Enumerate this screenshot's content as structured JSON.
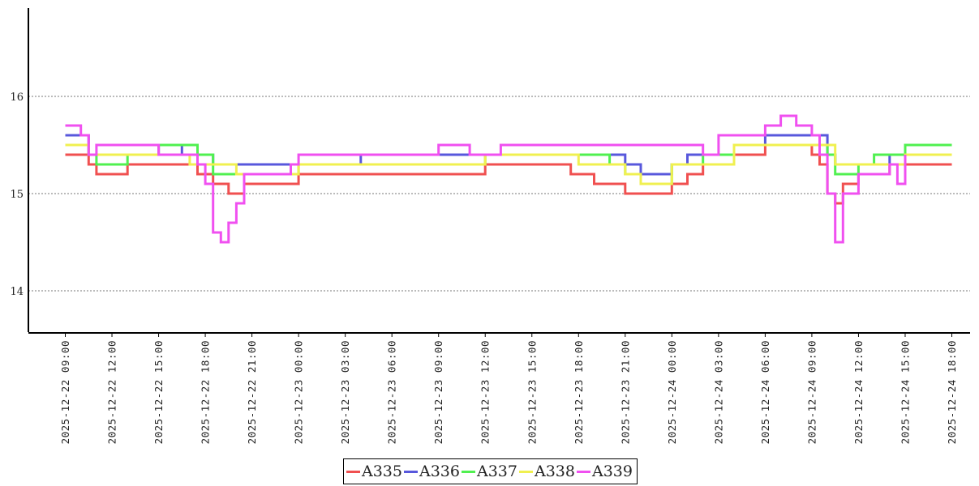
{
  "chart_data": {
    "type": "line",
    "title": "",
    "xlabel": "",
    "ylabel": "",
    "ylim": [
      13.6,
      16.9
    ],
    "y_ticks": [
      "14",
      "15",
      "16"
    ],
    "y_tick_values": [
      14,
      15,
      16
    ],
    "x_ticks": [
      "2025-12-22 09:00",
      "2025-12-22 12:00",
      "2025-12-22 15:00",
      "2025-12-22 18:00",
      "2025-12-22 21:00",
      "2025-12-23 00:00",
      "2025-12-23 03:00",
      "2025-12-23 06:00",
      "2025-12-23 09:00",
      "2025-12-23 12:00",
      "2025-12-23 15:00",
      "2025-12-23 18:00",
      "2025-12-23 21:00",
      "2025-12-24 00:00",
      "2025-12-24 03:00",
      "2025-12-24 06:00",
      "2025-12-24 09:00",
      "2025-12-24 12:00",
      "2025-12-24 15:00",
      "2025-12-24 18:00"
    ],
    "xlim": [
      "2025-12-22 08:05",
      "2025-12-24 19:15"
    ],
    "grid": "horizontal dotted",
    "legend": "bottom-center",
    "series": [
      {
        "name": "A335",
        "color": "#f05050",
        "points": [
          [
            "2025-12-22 09:00",
            15.4
          ],
          [
            "2025-12-22 10:30",
            15.3
          ],
          [
            "2025-12-22 11:00",
            15.2
          ],
          [
            "2025-12-22 13:00",
            15.3
          ],
          [
            "2025-12-22 17:30",
            15.2
          ],
          [
            "2025-12-22 18:30",
            15.1
          ],
          [
            "2025-12-22 19:30",
            15.0
          ],
          [
            "2025-12-22 20:30",
            15.1
          ],
          [
            "2025-12-22 23:30",
            15.1
          ],
          [
            "2025-12-23 00:00",
            15.2
          ],
          [
            "2025-12-23 07:00",
            15.2
          ],
          [
            "2025-12-23 08:00",
            15.2
          ],
          [
            "2025-12-23 12:00",
            15.3
          ],
          [
            "2025-12-23 16:30",
            15.3
          ],
          [
            "2025-12-23 17:30",
            15.2
          ],
          [
            "2025-12-23 19:00",
            15.1
          ],
          [
            "2025-12-23 21:00",
            15.0
          ],
          [
            "2025-12-24 00:00",
            15.1
          ],
          [
            "2025-12-24 01:00",
            15.2
          ],
          [
            "2025-12-24 02:00",
            15.3
          ],
          [
            "2025-12-24 04:00",
            15.4
          ],
          [
            "2025-12-24 06:00",
            15.5
          ],
          [
            "2025-12-24 08:00",
            15.5
          ],
          [
            "2025-12-24 09:00",
            15.4
          ],
          [
            "2025-12-24 09:30",
            15.3
          ],
          [
            "2025-12-24 10:00",
            15.0
          ],
          [
            "2025-12-24 10:30",
            14.9
          ],
          [
            "2025-12-24 11:00",
            15.1
          ],
          [
            "2025-12-24 12:00",
            15.2
          ],
          [
            "2025-12-24 14:00",
            15.3
          ],
          [
            "2025-12-24 18:00",
            15.3
          ]
        ]
      },
      {
        "name": "A336",
        "color": "#5858dc",
        "points": [
          [
            "2025-12-22 09:00",
            15.6
          ],
          [
            "2025-12-22 10:00",
            15.6
          ],
          [
            "2025-12-22 10:30",
            15.4
          ],
          [
            "2025-12-22 14:30",
            15.4
          ],
          [
            "2025-12-22 15:00",
            15.5
          ],
          [
            "2025-12-22 16:30",
            15.4
          ],
          [
            "2025-12-22 18:00",
            15.4
          ],
          [
            "2025-12-22 18:30",
            15.3
          ],
          [
            "2025-12-22 20:30",
            15.3
          ],
          [
            "2025-12-23 00:00",
            15.3
          ],
          [
            "2025-12-23 03:30",
            15.3
          ],
          [
            "2025-12-23 04:00",
            15.4
          ],
          [
            "2025-12-23 20:00",
            15.4
          ],
          [
            "2025-12-23 21:00",
            15.3
          ],
          [
            "2025-12-23 22:00",
            15.2
          ],
          [
            "2025-12-24 00:00",
            15.3
          ],
          [
            "2025-12-24 01:00",
            15.4
          ],
          [
            "2025-12-24 04:00",
            15.5
          ],
          [
            "2025-12-24 05:00",
            15.5
          ],
          [
            "2025-12-24 06:00",
            15.6
          ],
          [
            "2025-12-24 08:00",
            15.6
          ],
          [
            "2025-12-24 09:30",
            15.6
          ],
          [
            "2025-12-24 10:00",
            15.4
          ],
          [
            "2025-12-24 10:30",
            15.3
          ],
          [
            "2025-12-24 13:00",
            15.3
          ],
          [
            "2025-12-24 14:00",
            15.4
          ],
          [
            "2025-12-24 15:00",
            15.5
          ],
          [
            "2025-12-24 18:00",
            15.5
          ]
        ]
      },
      {
        "name": "A337",
        "color": "#50f050",
        "points": [
          [
            "2025-12-22 09:00",
            15.5
          ],
          [
            "2025-12-22 10:30",
            15.4
          ],
          [
            "2025-12-22 11:00",
            15.3
          ],
          [
            "2025-12-22 13:00",
            15.4
          ],
          [
            "2025-12-22 15:00",
            15.5
          ],
          [
            "2025-12-22 17:30",
            15.4
          ],
          [
            "2025-12-22 18:30",
            15.2
          ],
          [
            "2025-12-22 23:30",
            15.2
          ],
          [
            "2025-12-23 00:00",
            15.3
          ],
          [
            "2025-12-23 08:00",
            15.3
          ],
          [
            "2025-12-23 12:00",
            15.4
          ],
          [
            "2025-12-23 19:00",
            15.4
          ],
          [
            "2025-12-23 20:00",
            15.3
          ],
          [
            "2025-12-23 21:00",
            15.2
          ],
          [
            "2025-12-23 22:00",
            15.1
          ],
          [
            "2025-12-24 00:00",
            15.3
          ],
          [
            "2025-12-24 02:00",
            15.4
          ],
          [
            "2025-12-24 04:00",
            15.5
          ],
          [
            "2025-12-24 07:00",
            15.5
          ],
          [
            "2025-12-24 09:00",
            15.5
          ],
          [
            "2025-12-24 10:00",
            15.4
          ],
          [
            "2025-12-24 10:30",
            15.2
          ],
          [
            "2025-12-24 12:00",
            15.3
          ],
          [
            "2025-12-24 13:00",
            15.4
          ],
          [
            "2025-12-24 15:00",
            15.5
          ],
          [
            "2025-12-24 18:00",
            15.5
          ]
        ]
      },
      {
        "name": "A338",
        "color": "#f0f050",
        "points": [
          [
            "2025-12-22 09:00",
            15.5
          ],
          [
            "2025-12-22 10:30",
            15.4
          ],
          [
            "2025-12-22 14:00",
            15.4
          ],
          [
            "2025-12-22 17:00",
            15.3
          ],
          [
            "2025-12-22 19:00",
            15.3
          ],
          [
            "2025-12-22 20:00",
            15.2
          ],
          [
            "2025-12-23 00:00",
            15.3
          ],
          [
            "2025-12-23 09:00",
            15.3
          ],
          [
            "2025-12-23 12:00",
            15.4
          ],
          [
            "2025-12-23 18:00",
            15.3
          ],
          [
            "2025-12-23 20:00",
            15.3
          ],
          [
            "2025-12-23 21:00",
            15.2
          ],
          [
            "2025-12-23 22:00",
            15.1
          ],
          [
            "2025-12-24 00:00",
            15.3
          ],
          [
            "2025-12-24 04:00",
            15.5
          ],
          [
            "2025-12-24 09:00",
            15.5
          ],
          [
            "2025-12-24 10:30",
            15.3
          ],
          [
            "2025-12-24 13:00",
            15.3
          ],
          [
            "2025-12-24 15:00",
            15.4
          ],
          [
            "2025-12-24 18:00",
            15.4
          ]
        ]
      },
      {
        "name": "A339",
        "color": "#f050f0",
        "points": [
          [
            "2025-12-22 09:00",
            15.7
          ],
          [
            "2025-12-22 10:00",
            15.6
          ],
          [
            "2025-12-22 10:30",
            15.4
          ],
          [
            "2025-12-22 11:00",
            15.5
          ],
          [
            "2025-12-22 14:00",
            15.5
          ],
          [
            "2025-12-22 15:00",
            15.4
          ],
          [
            "2025-12-22 17:00",
            15.4
          ],
          [
            "2025-12-22 17:30",
            15.3
          ],
          [
            "2025-12-22 18:00",
            15.1
          ],
          [
            "2025-12-22 18:30",
            14.6
          ],
          [
            "2025-12-22 19:00",
            14.5
          ],
          [
            "2025-12-22 19:30",
            14.7
          ],
          [
            "2025-12-22 20:00",
            14.9
          ],
          [
            "2025-12-22 20:30",
            15.2
          ],
          [
            "2025-12-22 23:30",
            15.3
          ],
          [
            "2025-12-23 00:00",
            15.4
          ],
          [
            "2025-12-23 08:00",
            15.4
          ],
          [
            "2025-12-23 09:00",
            15.5
          ],
          [
            "2025-12-23 11:00",
            15.4
          ],
          [
            "2025-12-23 13:00",
            15.5
          ],
          [
            "2025-12-23 15:00",
            15.5
          ],
          [
            "2025-12-24 02:00",
            15.4
          ],
          [
            "2025-12-24 03:00",
            15.6
          ],
          [
            "2025-12-24 05:00",
            15.6
          ],
          [
            "2025-12-24 06:00",
            15.7
          ],
          [
            "2025-12-24 07:00",
            15.8
          ],
          [
            "2025-12-24 08:00",
            15.7
          ],
          [
            "2025-12-24 09:00",
            15.6
          ],
          [
            "2025-12-24 09:30",
            15.4
          ],
          [
            "2025-12-24 10:00",
            15.0
          ],
          [
            "2025-12-24 10:30",
            14.5
          ],
          [
            "2025-12-24 11:00",
            15.0
          ],
          [
            "2025-12-24 12:00",
            15.2
          ],
          [
            "2025-12-24 14:00",
            15.3
          ],
          [
            "2025-12-24 14:30",
            15.1
          ],
          [
            "2025-12-24 15:00",
            15.4
          ]
        ]
      }
    ]
  }
}
